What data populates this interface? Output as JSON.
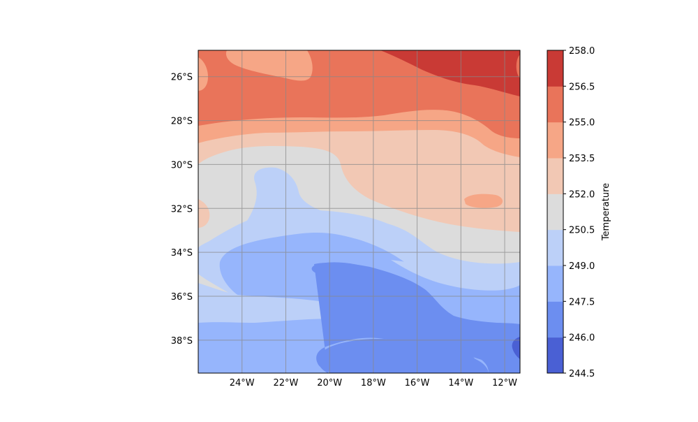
{
  "chart_data": {
    "type": "heatmap",
    "title": "",
    "colorbar_label": "Temperature",
    "levels": [
      244.5,
      246.0,
      247.5,
      249.0,
      250.5,
      252.0,
      253.5,
      255.0,
      256.5,
      258.0
    ],
    "level_labels": [
      "244.5",
      "246.0",
      "247.5",
      "249.0",
      "250.5",
      "252.0",
      "253.5",
      "255.0",
      "256.5",
      "258.0"
    ],
    "level_colors": [
      "#4a60d4",
      "#6c8ef0",
      "#96b5fc",
      "#bcd0f8",
      "#dcdcdc",
      "#f2c8b4",
      "#f6a686",
      "#e9745a",
      "#c93a35"
    ],
    "lon_range": [
      -26.0,
      -11.3
    ],
    "lat_range": [
      -39.5,
      -24.8
    ],
    "x_ticks": [
      {
        "value": -24,
        "label": "24°W"
      },
      {
        "value": -22,
        "label": "22°W"
      },
      {
        "value": -20,
        "label": "20°W"
      },
      {
        "value": -18,
        "label": "18°W"
      },
      {
        "value": -16,
        "label": "16°W"
      },
      {
        "value": -14,
        "label": "14°W"
      },
      {
        "value": -12,
        "label": "12°W"
      }
    ],
    "y_ticks": [
      {
        "value": -26,
        "label": "26°S"
      },
      {
        "value": -28,
        "label": "28°S"
      },
      {
        "value": -30,
        "label": "30°S"
      },
      {
        "value": -32,
        "label": "32°S"
      },
      {
        "value": -34,
        "label": "34°S"
      },
      {
        "value": -36,
        "label": "36°S"
      },
      {
        "value": -38,
        "label": "38°S"
      }
    ],
    "grid": true,
    "colorbar_position": "right"
  }
}
